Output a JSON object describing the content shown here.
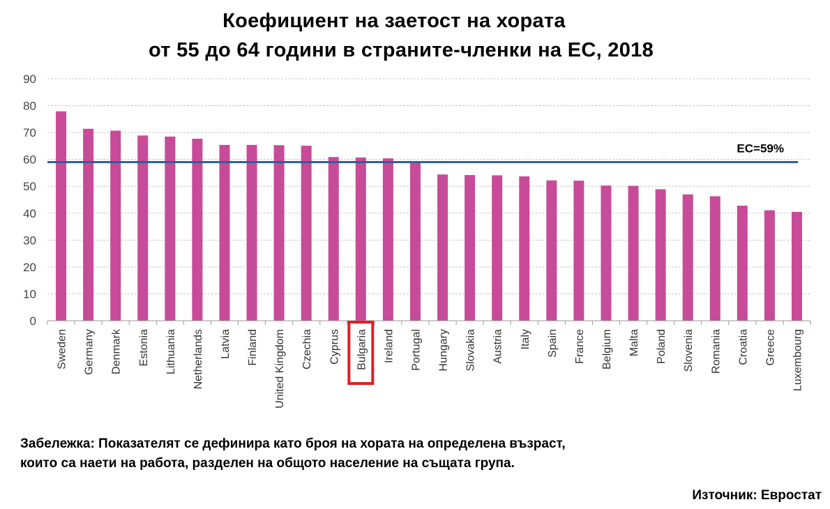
{
  "title_line1": "Коефициент на заетост на хората",
  "title_line2": "от 55 до 64 години в страните-членки на ЕС, 2018",
  "note_line1": "Забележка: Показателят се дефинира като броя на хората на определена възраст,",
  "note_line2": "които са наети на работа, разделен на общото население на същата група.",
  "source": "Източник: Евростат",
  "chart_data": {
    "type": "bar",
    "title": "Коефициент на заетост на хората от 55 до 64 години в страните-членки на ЕС, 2018",
    "categories": [
      "Sweden",
      "Germany",
      "Denmark",
      "Estonia",
      "Lithuania",
      "Netherlands",
      "Latvia",
      "Finland",
      "United Kingdom",
      "Czechia",
      "Cyprus",
      "Bulgaria",
      "Ireland",
      "Portugal",
      "Hungary",
      "Slovakia",
      "Austria",
      "Italy",
      "Spain",
      "France",
      "Belgium",
      "Malta",
      "Poland",
      "Slovenia",
      "Romania",
      "Croatia",
      "Greece",
      "Luxembourg"
    ],
    "values": [
      77.9,
      71.4,
      70.7,
      68.9,
      68.5,
      67.7,
      65.4,
      65.4,
      65.3,
      65.1,
      60.9,
      60.7,
      60.4,
      59.2,
      54.4,
      54.2,
      54.1,
      53.7,
      52.2,
      52.1,
      50.3,
      50.2,
      48.9,
      47.0,
      46.3,
      42.8,
      41.1,
      40.5
    ],
    "ylim": [
      0,
      90
    ],
    "yticks": [
      0,
      10,
      20,
      30,
      40,
      50,
      60,
      70,
      80,
      90
    ],
    "grid": true,
    "bar_color": "#C74B98",
    "reference_line": {
      "value": 59,
      "label": "ЕС=59%",
      "color": "#2E5F9A"
    },
    "highlight": {
      "category": "Bulgaria",
      "color": "#E31E24"
    }
  }
}
